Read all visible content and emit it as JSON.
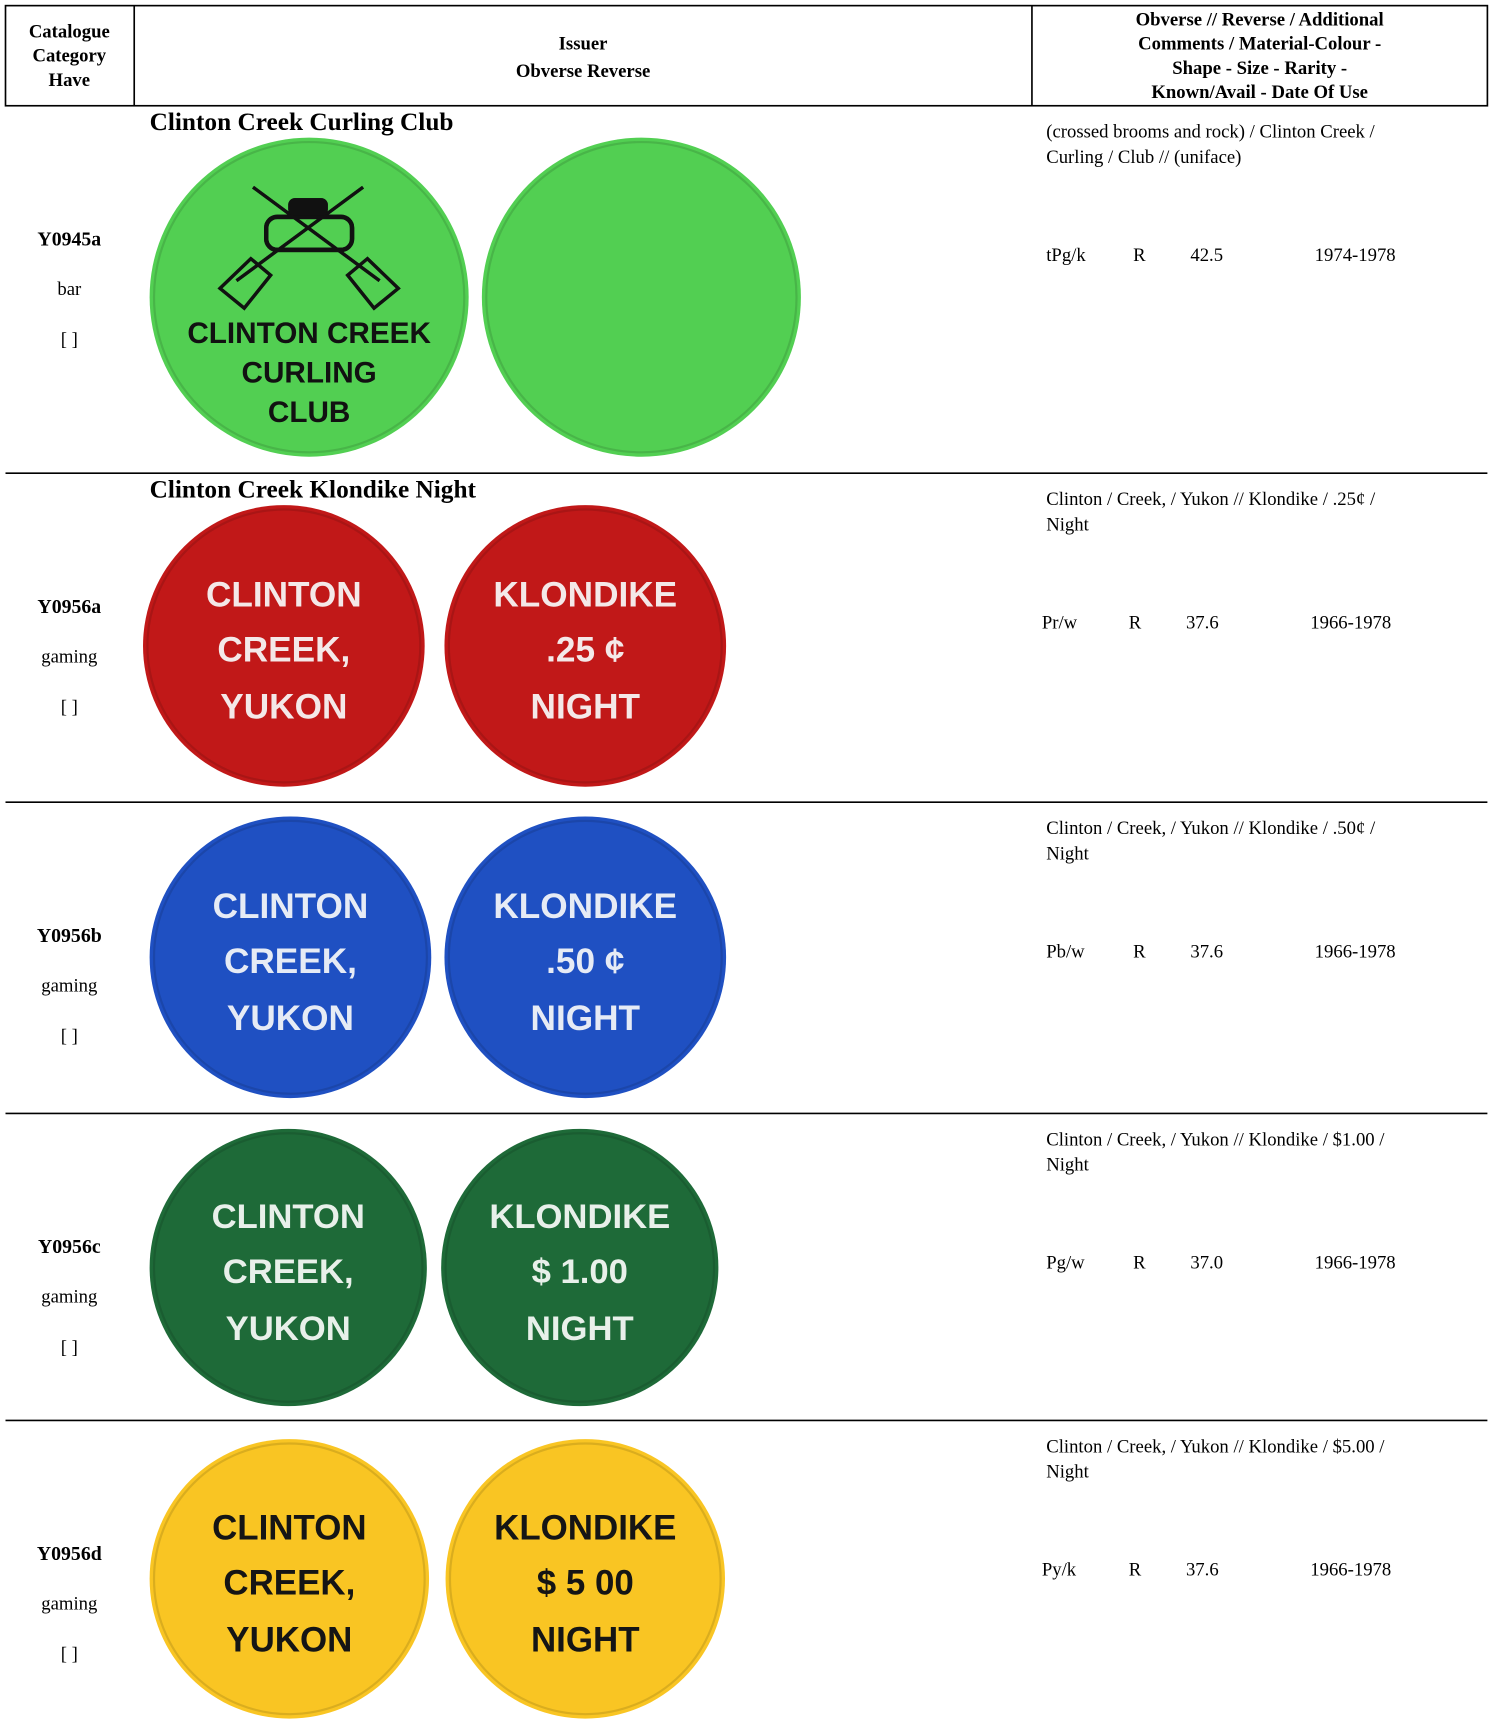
{
  "header": {
    "catalogue": [
      "Catalogue",
      "Category",
      "Have"
    ],
    "issuer": [
      "Issuer",
      "Obverse  Reverse"
    ],
    "details": [
      "Obverse // Reverse  / Additional",
      "Comments / Material-Colour -",
      "Shape -  Size -  Rarity -",
      "Known/Avail - Date Of Use"
    ]
  },
  "rows": [
    {
      "id": "Y0945a",
      "category": "bar",
      "have": "[    ]",
      "issuer": "Clinton Creek Curling Club",
      "description": [
        "(crossed brooms and rock) / Clinton Creek /",
        "Curling / Club  //  (uniface)"
      ],
      "material": "tPg/k",
      "rarity": "R",
      "size": "42.5",
      "date": "1974-1978",
      "obverse": {
        "color": "#52cf52",
        "text_color": "#111",
        "lines": [
          "CLINTON  CREEK",
          "CURLING",
          "CLUB"
        ]
      },
      "reverse": {
        "color": "#52cf52",
        "text_color": "#111",
        "lines": []
      }
    },
    {
      "id": "Y0956a",
      "category": "gaming",
      "have": "[    ]",
      "issuer": "Clinton Creek Klondike Night",
      "description": [
        "Clinton / Creek, / Yukon  //  Klondike / .25¢ /",
        "Night"
      ],
      "material": "Pr/w",
      "rarity": "R",
      "size": "37.6",
      "date": "1966-1978",
      "obverse": {
        "color": "#c11818",
        "text_color": "#f4e8e8",
        "lines": [
          "CLINTON",
          "CREEK,",
          "YUKON"
        ]
      },
      "reverse": {
        "color": "#c11818",
        "text_color": "#f4e8e8",
        "lines": [
          "KLONDIKE",
          ".25 ¢",
          "NIGHT"
        ]
      }
    },
    {
      "id": "Y0956b",
      "category": "gaming",
      "have": "[    ]",
      "description": [
        "Clinton / Creek, / Yukon  //  Klondike / .50¢ /",
        "Night"
      ],
      "material": "Pb/w",
      "rarity": "R",
      "size": "37.6",
      "date": "1966-1978",
      "obverse": {
        "color": "#1f50c2",
        "text_color": "#e6ebf5",
        "lines": [
          "CLINTON",
          "CREEK,",
          "YUKON"
        ]
      },
      "reverse": {
        "color": "#1f50c2",
        "text_color": "#e6ebf5",
        "lines": [
          "KLONDIKE",
          ".50 ¢",
          "NIGHT"
        ]
      }
    },
    {
      "id": "Y0956c",
      "category": "gaming",
      "have": "[    ]",
      "description": [
        "Clinton / Creek, / Yukon  //  Klondike / $1.00 /",
        "Night"
      ],
      "material": "Pg/w",
      "rarity": "R",
      "size": "37.0",
      "date": "1966-1978",
      "obverse": {
        "color": "#1e6a38",
        "text_color": "#e8f0ea",
        "lines": [
          "CLINTON",
          "CREEK,",
          "YUKON"
        ]
      },
      "reverse": {
        "color": "#1e6a38",
        "text_color": "#e8f0ea",
        "lines": [
          "KLONDIKE",
          "$ 1.00",
          "NIGHT"
        ]
      }
    },
    {
      "id": "Y0956d",
      "category": "gaming",
      "have": "[    ]",
      "description": [
        "Clinton / Creek, / Yukon  //  Klondike / $5.00 /",
        "Night"
      ],
      "material": "Py/k",
      "rarity": "R",
      "size": "37.6",
      "date": "1966-1978",
      "obverse": {
        "color": "#f9c523",
        "text_color": "#151515",
        "lines": [
          "CLINTON",
          "CREEK,",
          "YUKON"
        ]
      },
      "reverse": {
        "color": "#f9c523",
        "text_color": "#151515",
        "lines": [
          "KLONDIKE",
          "$ 5 00",
          "NIGHT"
        ]
      }
    }
  ]
}
